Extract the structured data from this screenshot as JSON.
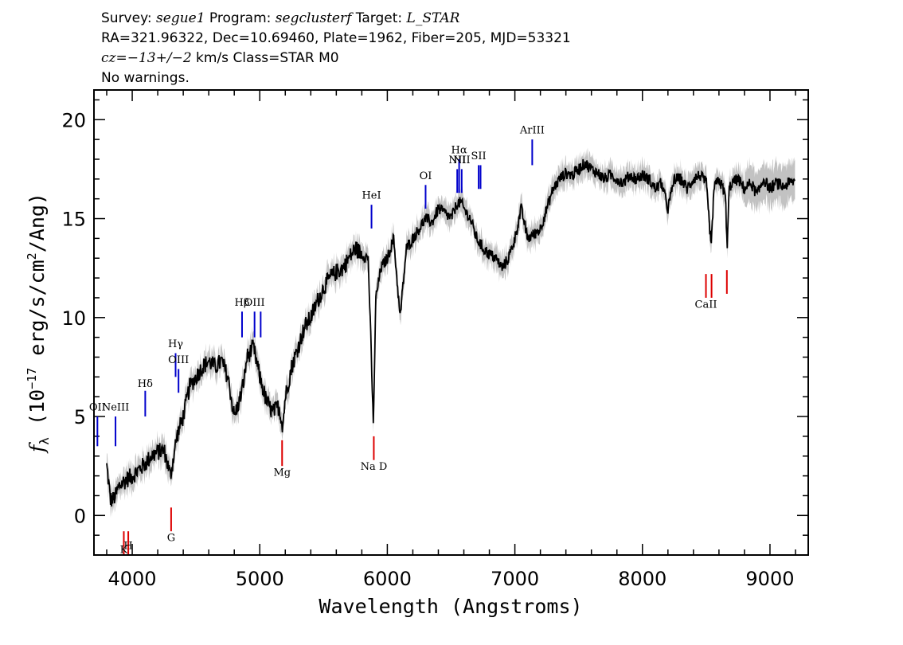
{
  "header": {
    "line1": {
      "survey_label": "Survey: ",
      "survey": "segue1",
      "program_label": " Program: ",
      "program": "segclusterf",
      "target_label": " Target: ",
      "target": "L_STAR"
    },
    "line2": "RA=321.96322, Dec=10.69460, Plate=1962, Fiber=205, MJD=53321",
    "line3": {
      "cz_label": "cz",
      "cz_value": "=−13+/−2",
      "cz_rest": " km/s Class=STAR M0"
    },
    "line4": "No warnings."
  },
  "chart_data": {
    "type": "line",
    "xlabel": "Wavelength (Angstroms)",
    "ylabel_main": "f",
    "ylabel_sub": "λ",
    "ylabel_units": " (10",
    "ylabel_exp": "−17",
    "ylabel_units2": " erg/s/cm",
    "ylabel_exp2": "2",
    "ylabel_units3": "/Ang)",
    "xlim": [
      3700,
      9300
    ],
    "ylim": [
      -2,
      21.5
    ],
    "xticks": [
      4000,
      5000,
      6000,
      7000,
      8000,
      9000
    ],
    "yticks": [
      0,
      5,
      10,
      15,
      20
    ],
    "series": [
      {
        "color": "#000000",
        "x": [
          3800,
          3830,
          3850,
          3870,
          3900,
          3950,
          4000,
          4050,
          4100,
          4150,
          4200,
          4250,
          4300,
          4350,
          4400,
          4450,
          4500,
          4550,
          4600,
          4650,
          4700,
          4750,
          4800,
          4850,
          4880,
          4900,
          4950,
          5000,
          5050,
          5100,
          5150,
          5180,
          5200,
          5250,
          5300,
          5350,
          5400,
          5450,
          5500,
          5550,
          5600,
          5650,
          5700,
          5750,
          5800,
          5850,
          5870,
          5890,
          5910,
          5950,
          6000,
          6050,
          6100,
          6150,
          6200,
          6250,
          6300,
          6350,
          6400,
          6450,
          6500,
          6550,
          6580,
          6600,
          6650,
          6700,
          6750,
          6800,
          6850,
          6900,
          6950,
          7000,
          7050,
          7100,
          7150,
          7200,
          7250,
          7300,
          7350,
          7400,
          7450,
          7500,
          7550,
          7600,
          7650,
          7700,
          7750,
          7800,
          7850,
          7900,
          7950,
          8000,
          8050,
          8100,
          8150,
          8200,
          8250,
          8300,
          8350,
          8400,
          8450,
          8500,
          8540,
          8560,
          8600,
          8650,
          8665,
          8680,
          8700,
          8750,
          8800,
          8850,
          8900,
          8950,
          9000,
          9050,
          9100,
          9150,
          9200
        ],
        "y": [
          2.5,
          0.8,
          0.8,
          1.0,
          1.5,
          1.8,
          2.0,
          2.3,
          2.6,
          3.0,
          3.2,
          3.3,
          2.0,
          4.0,
          5.0,
          6.5,
          7.0,
          7.5,
          7.8,
          7.5,
          7.8,
          7.0,
          5.0,
          6.0,
          7.0,
          8.0,
          8.5,
          7.0,
          5.8,
          5.2,
          5.5,
          4.5,
          6.0,
          7.5,
          8.5,
          9.5,
          10.0,
          10.8,
          11.5,
          12.0,
          12.3,
          12.5,
          13.0,
          13.5,
          13.2,
          13.0,
          9.0,
          4.5,
          11.0,
          12.5,
          13.0,
          14.0,
          10.0,
          13.5,
          14.0,
          14.5,
          15.0,
          14.8,
          15.5,
          15.3,
          15.0,
          15.8,
          15.8,
          15.5,
          15.0,
          14.0,
          13.5,
          13.2,
          13.0,
          12.5,
          13.0,
          14.0,
          15.5,
          14.0,
          14.2,
          14.5,
          15.5,
          16.5,
          17.0,
          17.3,
          17.2,
          17.5,
          17.8,
          17.5,
          17.3,
          17.0,
          17.2,
          17.0,
          16.8,
          17.2,
          17.0,
          17.2,
          17.0,
          16.5,
          16.8,
          15.5,
          17.0,
          17.0,
          16.5,
          17.0,
          17.2,
          16.8,
          13.5,
          16.5,
          17.0,
          16.2,
          13.5,
          16.5,
          16.8,
          17.0,
          16.5,
          16.8,
          16.2,
          17.0,
          16.5,
          16.8,
          16.6,
          16.8,
          16.9
        ]
      }
    ],
    "emission_lines": [
      {
        "label": "OII",
        "wavelength": 3727,
        "y0": 3.5,
        "y1": 5.0,
        "label_y": 5.3
      },
      {
        "label": "NeIII",
        "wavelength": 3869,
        "y0": 3.5,
        "y1": 5.0,
        "label_y": 5.3
      },
      {
        "label": "Hδ",
        "wavelength": 4102,
        "y0": 5.0,
        "y1": 6.3,
        "label_y": 6.5
      },
      {
        "label": "Hγ",
        "wavelength": 4340,
        "y0": 7.0,
        "y1": 8.2,
        "label_y": 8.5
      },
      {
        "label": "OIII",
        "wavelength": 4363,
        "y0": 6.2,
        "y1": 7.4,
        "label_y": 7.7
      },
      {
        "label": "Hβ",
        "wavelength": 4861,
        "y0": 9.0,
        "y1": 10.3,
        "label_y": 10.6
      },
      {
        "label": "OIII",
        "wavelength": 4959,
        "y0": 9.0,
        "y1": 10.3,
        "label_y": 10.6
      },
      {
        "label": "",
        "wavelength": 5007,
        "y0": 9.0,
        "y1": 10.3,
        "label_y": 10.6
      },
      {
        "label": "HeI",
        "wavelength": 5876,
        "y0": 14.5,
        "y1": 15.7,
        "label_y": 16.0
      },
      {
        "label": "OI",
        "wavelength": 6300,
        "y0": 15.5,
        "y1": 16.7,
        "label_y": 17.0
      },
      {
        "label": "NII",
        "wavelength": 6548,
        "y0": 16.3,
        "y1": 17.5,
        "label_y": 17.8
      },
      {
        "label": "Hα",
        "wavelength": 6563,
        "y0": 16.3,
        "y1": 18.0,
        "label_y": 18.3
      },
      {
        "label": "NII",
        "wavelength": 6583,
        "y0": 16.3,
        "y1": 17.5,
        "label_y": 17.8
      },
      {
        "label": "SII",
        "wavelength": 6716,
        "y0": 16.5,
        "y1": 17.7,
        "label_y": 18.0
      },
      {
        "label": "",
        "wavelength": 6731,
        "y0": 16.5,
        "y1": 17.7,
        "label_y": 18.0
      },
      {
        "label": "ArIII",
        "wavelength": 7136,
        "y0": 17.7,
        "y1": 19.0,
        "label_y": 19.3
      }
    ],
    "absorption_lines": [
      {
        "label": "K",
        "wavelength": 3934,
        "y0": -2.0,
        "y1": -0.8,
        "label_y": -1.9
      },
      {
        "label": "H",
        "wavelength": 3969,
        "y0": -2.0,
        "y1": -0.8,
        "label_y": -1.7
      },
      {
        "label": "G",
        "wavelength": 4305,
        "y0": -0.8,
        "y1": 0.4,
        "label_y": -1.3
      },
      {
        "label": "Mg",
        "wavelength": 5175,
        "y0": 2.5,
        "y1": 3.8,
        "label_y": 2.0
      },
      {
        "label": "Na D",
        "wavelength": 5894,
        "y0": 2.8,
        "y1": 4.0,
        "label_y": 2.3
      },
      {
        "label": "CaII",
        "wavelength": 8498,
        "y0": 11.0,
        "y1": 12.2,
        "label_y": 10.5
      },
      {
        "label": "",
        "wavelength": 8542,
        "y0": 11.0,
        "y1": 12.2,
        "label_y": 10.5
      },
      {
        "label": "",
        "wavelength": 8662,
        "y0": 11.2,
        "y1": 12.4,
        "label_y": 10.7
      }
    ],
    "emission_color": "#0000cc",
    "absorption_color": "#dd0000",
    "error_color": "#bbbbbb"
  }
}
